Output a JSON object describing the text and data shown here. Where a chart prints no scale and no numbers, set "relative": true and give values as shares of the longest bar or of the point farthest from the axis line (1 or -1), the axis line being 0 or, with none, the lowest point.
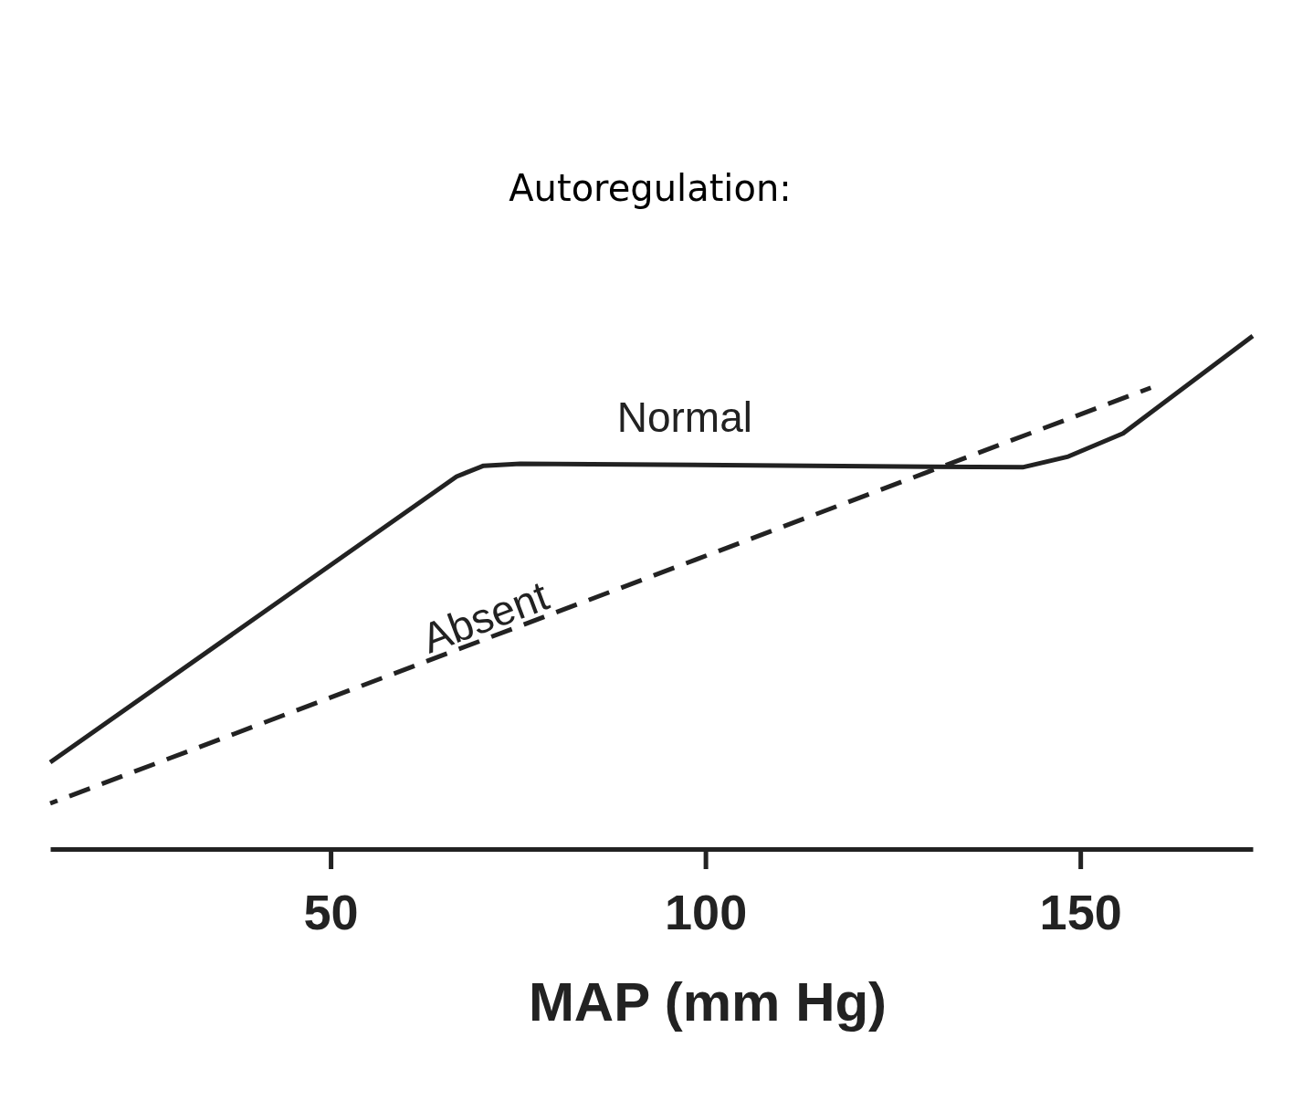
{
  "chart_data": {
    "type": "line",
    "title": "Autoregulation:",
    "xlabel": "MAP (mm Hg)",
    "relative": true,
    "xlim": [
      12.6,
      173
    ],
    "xticks": [
      50,
      100,
      150
    ],
    "grid": false,
    "series": [
      {
        "name": "Normal",
        "color": "#222222",
        "line_style": "solid",
        "x": [
          12.6,
          66.8,
          70.4,
          75.3,
          142.3,
          148.4,
          155.7,
          173
        ],
        "values": [
          0.169,
          0.726,
          0.747,
          0.751,
          0.744,
          0.765,
          0.81,
          1.0
        ]
      },
      {
        "name": "Absent",
        "color": "#222222",
        "line_style": "dashed",
        "x": [
          12.6,
          159.4
        ],
        "values": [
          0.089,
          0.899
        ]
      }
    ]
  }
}
